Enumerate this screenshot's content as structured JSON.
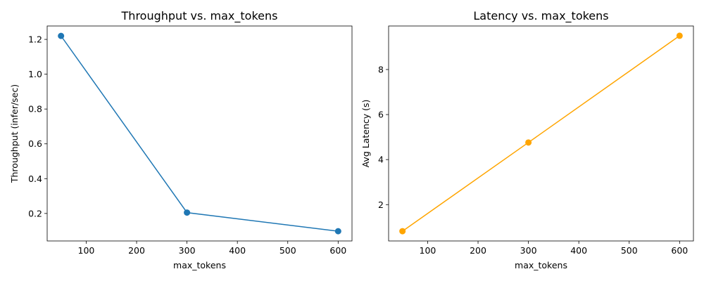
{
  "chart_data": [
    {
      "type": "line",
      "title": "Throughput vs. max_tokens",
      "xlabel": "max_tokens",
      "ylabel": "Throughput (infer/sec)",
      "x": [
        50,
        300,
        600
      ],
      "series": [
        {
          "values": [
            1.22,
            0.205,
            0.098
          ],
          "color": "#1f77b4"
        }
      ],
      "xlim": [
        22.5,
        627.5
      ],
      "ylim": [
        0.042,
        1.277
      ],
      "xticks": [
        100,
        200,
        300,
        400,
        500,
        600
      ],
      "yticks": [
        0.2,
        0.4,
        0.6,
        0.8,
        1.0,
        1.2
      ],
      "ytick_labels": [
        "0.2",
        "0.4",
        "0.6",
        "0.8",
        "1.0",
        "1.2"
      ],
      "grid": false,
      "markers": true
    },
    {
      "type": "line",
      "title": "Latency vs. max_tokens",
      "xlabel": "max_tokens",
      "ylabel": "Avg Latency (s)",
      "x": [
        50,
        300,
        600
      ],
      "series": [
        {
          "values": [
            0.82,
            4.76,
            9.5
          ],
          "color": "#ffa500"
        }
      ],
      "xlim": [
        22.5,
        627.5
      ],
      "ylim": [
        0.386,
        9.934
      ],
      "xticks": [
        100,
        200,
        300,
        400,
        500,
        600
      ],
      "yticks": [
        2,
        4,
        6,
        8
      ],
      "ytick_labels": [
        "2",
        "4",
        "6",
        "8"
      ],
      "grid": false,
      "markers": true
    }
  ]
}
